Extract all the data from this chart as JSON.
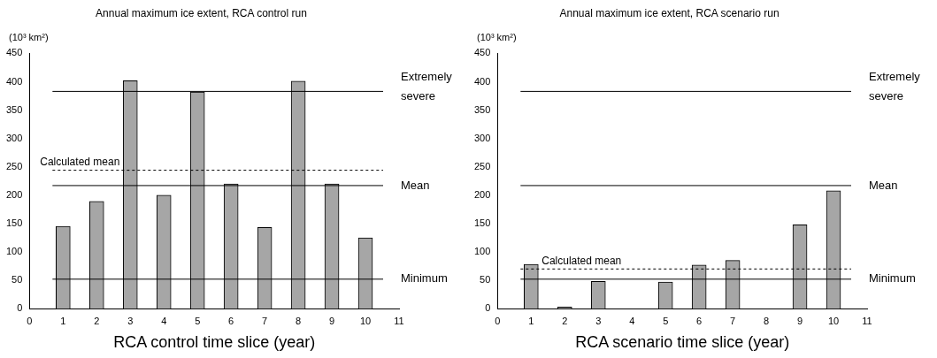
{
  "chart_data": [
    {
      "type": "bar",
      "title": "Annual maximum ice extent, RCA control run",
      "xlabel": "RCA control time slice (year)",
      "ylabel": "(10³ km²)",
      "x": [
        1,
        2,
        3,
        4,
        5,
        6,
        7,
        8,
        9,
        10
      ],
      "values": [
        145,
        189,
        402,
        200,
        382,
        220,
        143,
        401,
        220,
        125
      ],
      "color": "#a6a6a6",
      "xlim": [
        0,
        11
      ],
      "xticks": [
        0,
        1,
        2,
        3,
        4,
        5,
        6,
        7,
        8,
        9,
        10,
        11
      ],
      "ylim": [
        0,
        450
      ],
      "yticks": [
        0,
        50,
        100,
        150,
        200,
        250,
        300,
        350,
        400,
        450
      ],
      "grid": false,
      "legend": false,
      "ref_lines": [
        {
          "axis": "y",
          "value": 383,
          "label": "Extremely severe"
        },
        {
          "axis": "y",
          "value": 244,
          "label": "Calculated mean",
          "line_style": "dashed"
        },
        {
          "axis": "y",
          "value": 217,
          "label": "Mean"
        },
        {
          "axis": "y",
          "value": 52,
          "label": "Minimum"
        }
      ]
    },
    {
      "type": "bar",
      "title": "Annual maximum ice extent, RCA scenario run",
      "xlabel": "RCA scenario time slice (year)",
      "ylabel": "(10³ km²)",
      "x": [
        1,
        2,
        3,
        4,
        5,
        6,
        7,
        8,
        9,
        10
      ],
      "values": [
        78,
        3,
        48,
        0,
        47,
        77,
        85,
        0,
        148,
        208
      ],
      "color": "#a6a6a6",
      "xlim": [
        0,
        11
      ],
      "xticks": [
        0,
        1,
        2,
        3,
        4,
        5,
        6,
        7,
        8,
        9,
        10,
        11
      ],
      "ylim": [
        0,
        450
      ],
      "yticks": [
        0,
        50,
        100,
        150,
        200,
        250,
        300,
        350,
        400,
        450
      ],
      "grid": false,
      "legend": false,
      "ref_lines": [
        {
          "axis": "y",
          "value": 383,
          "label": "Extremely severe"
        },
        {
          "axis": "y",
          "value": 217,
          "label": "Mean"
        },
        {
          "axis": "y",
          "value": 70,
          "label": "Calculated mean",
          "line_style": "dashed"
        },
        {
          "axis": "y",
          "value": 52,
          "label": "Minimum"
        }
      ]
    }
  ]
}
